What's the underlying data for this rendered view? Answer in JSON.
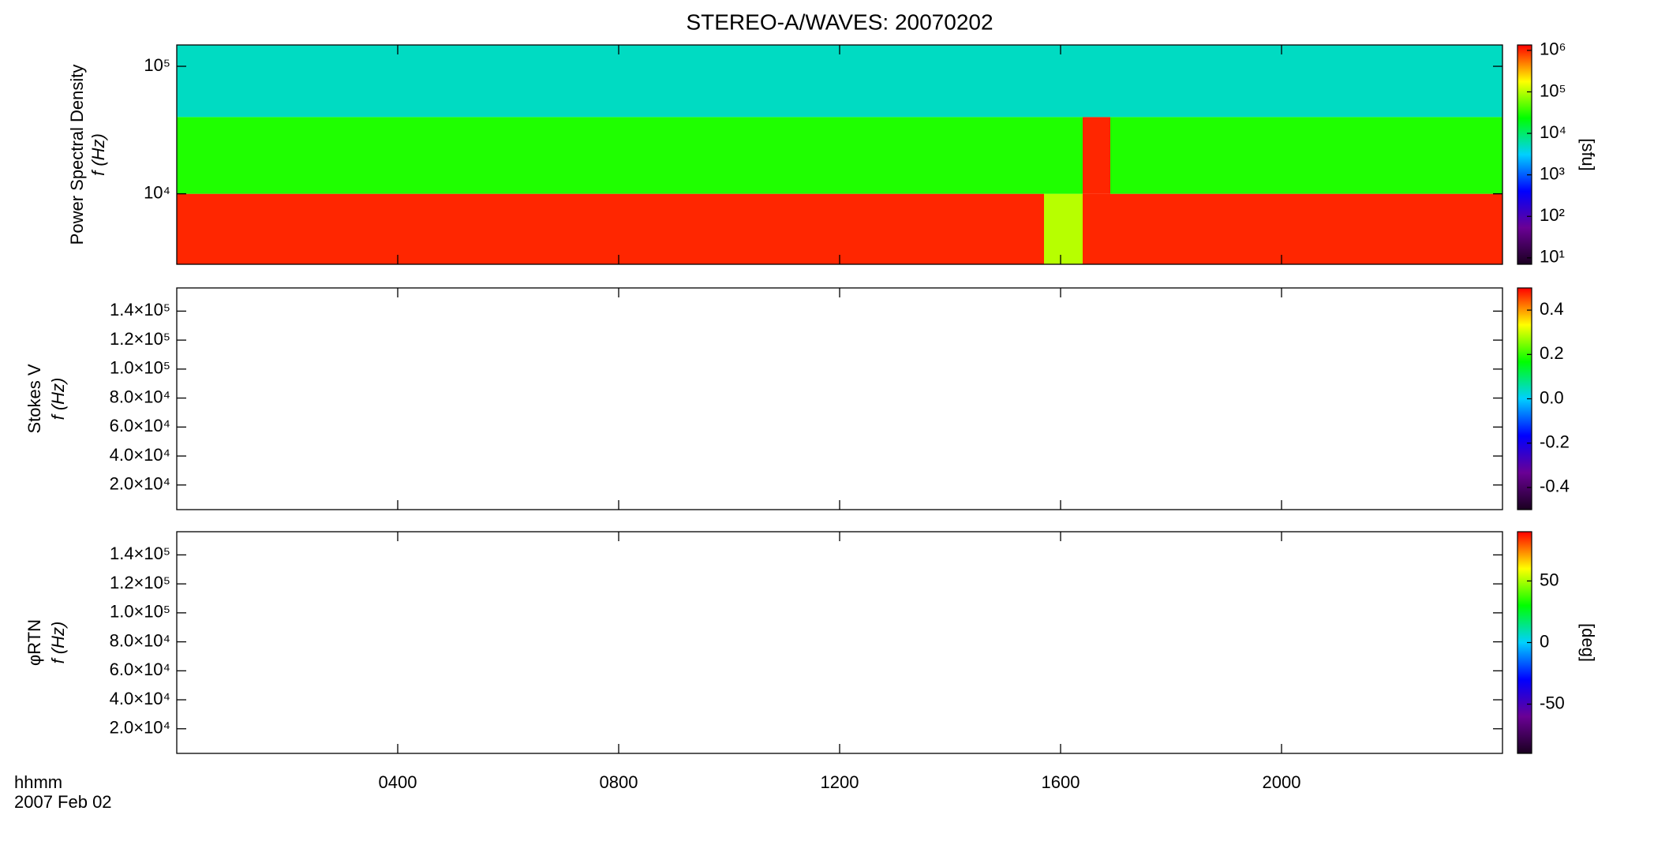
{
  "title": "STEREO-A/WAVES: 20070202",
  "xlabel": "hhmm",
  "date": "2007 Feb 02",
  "chart_data": [
    {
      "type": "heatmap",
      "ylabel": [
        "Power Spectral Density",
        "f (Hz)"
      ],
      "ylog": true,
      "ylim": [
        2800,
        147000
      ],
      "yticks": [
        {
          "value": 10000,
          "label": "10⁴"
        },
        {
          "value": 100000,
          "label": "10⁵"
        }
      ],
      "x_edges": [
        0,
        15.7,
        16.4,
        16.9,
        24
      ],
      "y_edges": [
        2800,
        10000,
        40000,
        147000
      ],
      "z": [
        [
          1000000,
          100000,
          1000000,
          1000000
        ],
        [
          30000,
          30000,
          1000000,
          30000
        ],
        [
          5000,
          5000,
          5000,
          5000
        ]
      ],
      "zlog": true,
      "zlim": [
        7,
        1350000
      ],
      "zticks": [
        {
          "value": 10,
          "label": "10¹"
        },
        {
          "value": 100,
          "label": "10²"
        },
        {
          "value": 1000,
          "label": "10³"
        },
        {
          "value": 10000,
          "label": "10⁴"
        },
        {
          "value": 100000,
          "label": "10⁵"
        },
        {
          "value": 1000000,
          "label": "10⁶"
        }
      ],
      "zlabel": "[sfu]",
      "colormap": [
        "#1a0020",
        "#6a0095",
        "#0000ff",
        "#00d0ff",
        "#00ff00",
        "#ffff00",
        "#ff0000"
      ]
    },
    {
      "type": "heatmap",
      "ylabel": [
        "Stokes V",
        "f (Hz)"
      ],
      "ylog": false,
      "ylim": [
        3000,
        156000
      ],
      "yticks": [
        {
          "value": 20000,
          "label": "2.0×10⁴"
        },
        {
          "value": 40000,
          "label": "4.0×10⁴"
        },
        {
          "value": 60000,
          "label": "6.0×10⁴"
        },
        {
          "value": 80000,
          "label": "8.0×10⁴"
        },
        {
          "value": 100000,
          "label": "1.0×10⁵"
        },
        {
          "value": 120000,
          "label": "1.2×10⁵"
        },
        {
          "value": 140000,
          "label": "1.4×10⁵"
        }
      ],
      "zlog": false,
      "zlim": [
        -0.5,
        0.5
      ],
      "zticks": [
        -0.4,
        -0.2,
        {
          "value": 0,
          "label": "0.0"
        },
        0.2,
        0.4
      ],
      "colormap": [
        "#1a0020",
        "#6a0095",
        "#0000ff",
        "#00d0ff",
        "#00ff00",
        "#ffff00",
        "#ff0000"
      ]
    },
    {
      "type": "heatmap",
      "ylabel": [
        "φRTN",
        "f (Hz)"
      ],
      "ylog": false,
      "ylim": [
        3000,
        156000
      ],
      "yticks": [
        {
          "value": 20000,
          "label": "2.0×10⁴"
        },
        {
          "value": 40000,
          "label": "4.0×10⁴"
        },
        {
          "value": 60000,
          "label": "6.0×10⁴"
        },
        {
          "value": 80000,
          "label": "8.0×10⁴"
        },
        {
          "value": 100000,
          "label": "1.0×10⁵"
        },
        {
          "value": 120000,
          "label": "1.2×10⁵"
        },
        {
          "value": 140000,
          "label": "1.4×10⁵"
        }
      ],
      "zlog": false,
      "zlim": [
        -90,
        90
      ],
      "zticks": [
        -50,
        0,
        50
      ],
      "zlabel": "[deg]",
      "colormap": [
        "#1a0020",
        "#6a0095",
        "#0000ff",
        "#00d0ff",
        "#00ff00",
        "#ffff00",
        "#ff0000"
      ],
      "xlim": [
        0,
        24
      ],
      "xticks": [
        {
          "value": 4,
          "label": "0400"
        },
        {
          "value": 8,
          "label": "0800"
        },
        {
          "value": 12,
          "label": "1200"
        },
        {
          "value": 16,
          "label": "1600"
        },
        {
          "value": 20,
          "label": "2000"
        }
      ]
    }
  ]
}
